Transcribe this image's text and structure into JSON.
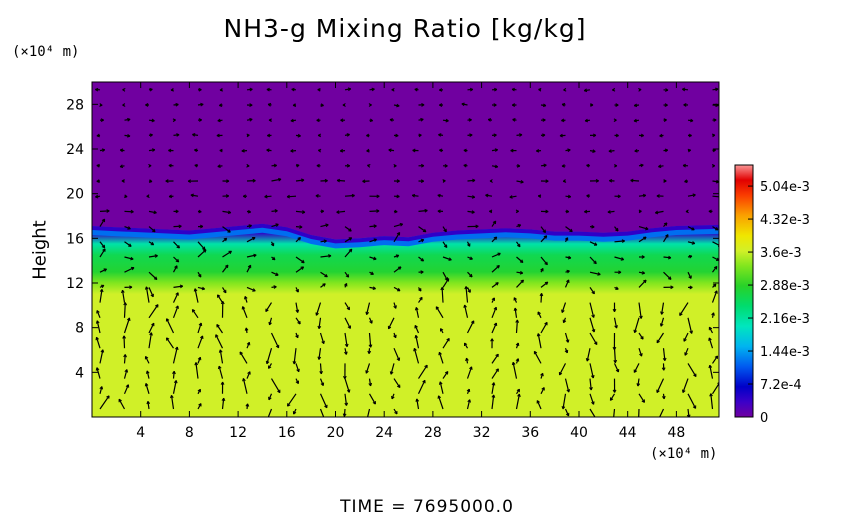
{
  "chart_data": {
    "type": "heatmap",
    "title": "NH3-g Mixing Ratio [kg/kg]",
    "ylabel": "Height",
    "y_unit": "(×10⁴ m)",
    "x_unit": "(×10⁴ m)",
    "xlim": [
      0,
      51.5
    ],
    "ylim": [
      0,
      30
    ],
    "x_ticks": [
      4,
      8,
      12,
      16,
      20,
      24,
      28,
      32,
      36,
      40,
      44,
      48
    ],
    "y_ticks": [
      4,
      8,
      12,
      16,
      20,
      24,
      28
    ],
    "colorbar": {
      "min": 0,
      "max": 0.0055,
      "tick_values": [
        0,
        0.00072,
        0.00144,
        0.00216,
        0.00288,
        0.0036,
        0.00432,
        0.00504
      ],
      "tick_labels": [
        "0",
        "7.2e-4",
        "1.44e-3",
        "2.16e-3",
        "2.88e-3",
        "3.6e-3",
        "4.32e-3",
        "5.04e-3"
      ]
    },
    "field_profile": [
      {
        "height": 0,
        "value": 0.00362
      },
      {
        "height": 11,
        "value": 0.00362
      },
      {
        "height": 12,
        "value": 0.0033
      },
      {
        "height": 13,
        "value": 0.0028
      },
      {
        "height": 14.5,
        "value": 0.0026
      },
      {
        "height": 15.5,
        "value": 0.0021
      },
      {
        "height": 16.5,
        "value": 0.0004
      },
      {
        "height": 17.5,
        "value": 0.0
      },
      {
        "height": 30,
        "value": 0.0
      }
    ],
    "top_boundary": {
      "x": [
        0,
        2,
        4,
        6,
        8,
        10,
        12,
        14,
        16,
        18,
        20,
        22,
        24,
        26,
        28,
        30,
        32,
        34,
        36,
        38,
        40,
        42,
        44,
        46,
        48,
        51.5
      ],
      "height": [
        17.1,
        17.0,
        16.9,
        16.8,
        16.7,
        16.9,
        17.1,
        17.3,
        17.0,
        16.3,
        15.9,
        16.0,
        16.2,
        16.1,
        16.5,
        16.7,
        16.8,
        16.9,
        16.8,
        16.6,
        16.6,
        16.5,
        16.6,
        16.9,
        17.1,
        17.2
      ]
    },
    "vectors": "wind velocity arrows overlaid across the domain",
    "time_label": "TIME = 7695000.0"
  }
}
